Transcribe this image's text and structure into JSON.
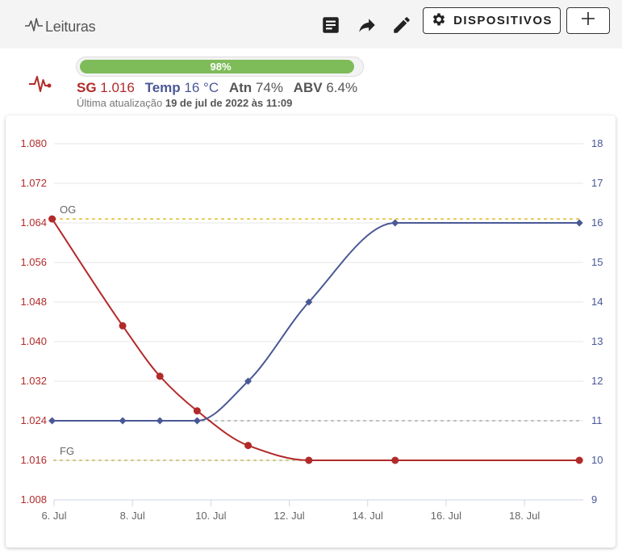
{
  "toolbar": {
    "title": "Leituras",
    "devices_label": "DISPOSITIVOS",
    "icons": [
      "pulse-icon",
      "notes-icon",
      "share-icon",
      "edit-icon",
      "gear-icon",
      "plus-icon"
    ]
  },
  "summary": {
    "progress_value": 98,
    "progress_label": "98%",
    "sg_label": "SG",
    "sg_value": "1.016",
    "temp_label": "Temp",
    "temp_value": "16 °C",
    "atn_label": "Atn",
    "atn_value": "74%",
    "abv_label": "ABV",
    "abv_value": "6.4%",
    "updated_prefix": "Última atualização",
    "updated_value": "19 de jul de 2022 às 11:09"
  },
  "colors": {
    "sg": "#b22a2a",
    "temp": "#4a5896",
    "og_line": "#e8c547",
    "fg_line": "#c9c77a",
    "progress": "#7ebc59"
  },
  "chart_data": {
    "type": "line",
    "x_tick_labels": [
      "6. Jul",
      "8. Jul",
      "10. Jul",
      "12. Jul",
      "14. Jul",
      "16. Jul",
      "18. Jul"
    ],
    "x_ticks": [
      6,
      8,
      10,
      12,
      14,
      16,
      18
    ],
    "xlim": [
      6,
      19.5
    ],
    "y_left": {
      "ylim": [
        1.008,
        1.08
      ],
      "ticks": [
        1.008,
        1.016,
        1.024,
        1.032,
        1.04,
        1.048,
        1.056,
        1.064,
        1.072,
        1.08
      ],
      "tick_labels": [
        "1.008",
        "1.016",
        "1.024",
        "1.032",
        "1.040",
        "1.048",
        "1.056",
        "1.064",
        "1.072",
        "1.080"
      ]
    },
    "y_right": {
      "ylim": [
        9,
        18
      ],
      "ticks": [
        9,
        10,
        11,
        12,
        13,
        14,
        15,
        16,
        17,
        18
      ],
      "tick_labels": [
        "9",
        "10",
        "11",
        "12",
        "13",
        "14",
        "15",
        "16",
        "17",
        "18"
      ]
    },
    "series": [
      {
        "name": "SG",
        "axis": "left",
        "x": [
          5.95,
          7.75,
          8.7,
          9.65,
          10.95,
          12.5,
          14.7,
          19.4
        ],
        "y": [
          1.0648,
          1.0432,
          1.033,
          1.026,
          1.019,
          1.016,
          1.016,
          1.016
        ]
      },
      {
        "name": "Temp",
        "axis": "right",
        "x": [
          5.95,
          7.75,
          8.7,
          9.65,
          10.95,
          12.5,
          14.7,
          19.4
        ],
        "y": [
          11,
          11,
          11,
          11,
          12,
          14,
          16,
          16
        ]
      }
    ],
    "reference_lines": [
      {
        "label": "OG",
        "axis": "left",
        "value": 1.0648
      },
      {
        "label": "FG",
        "axis": "left",
        "value": 1.016
      }
    ],
    "temp_reference_value": 11
  }
}
